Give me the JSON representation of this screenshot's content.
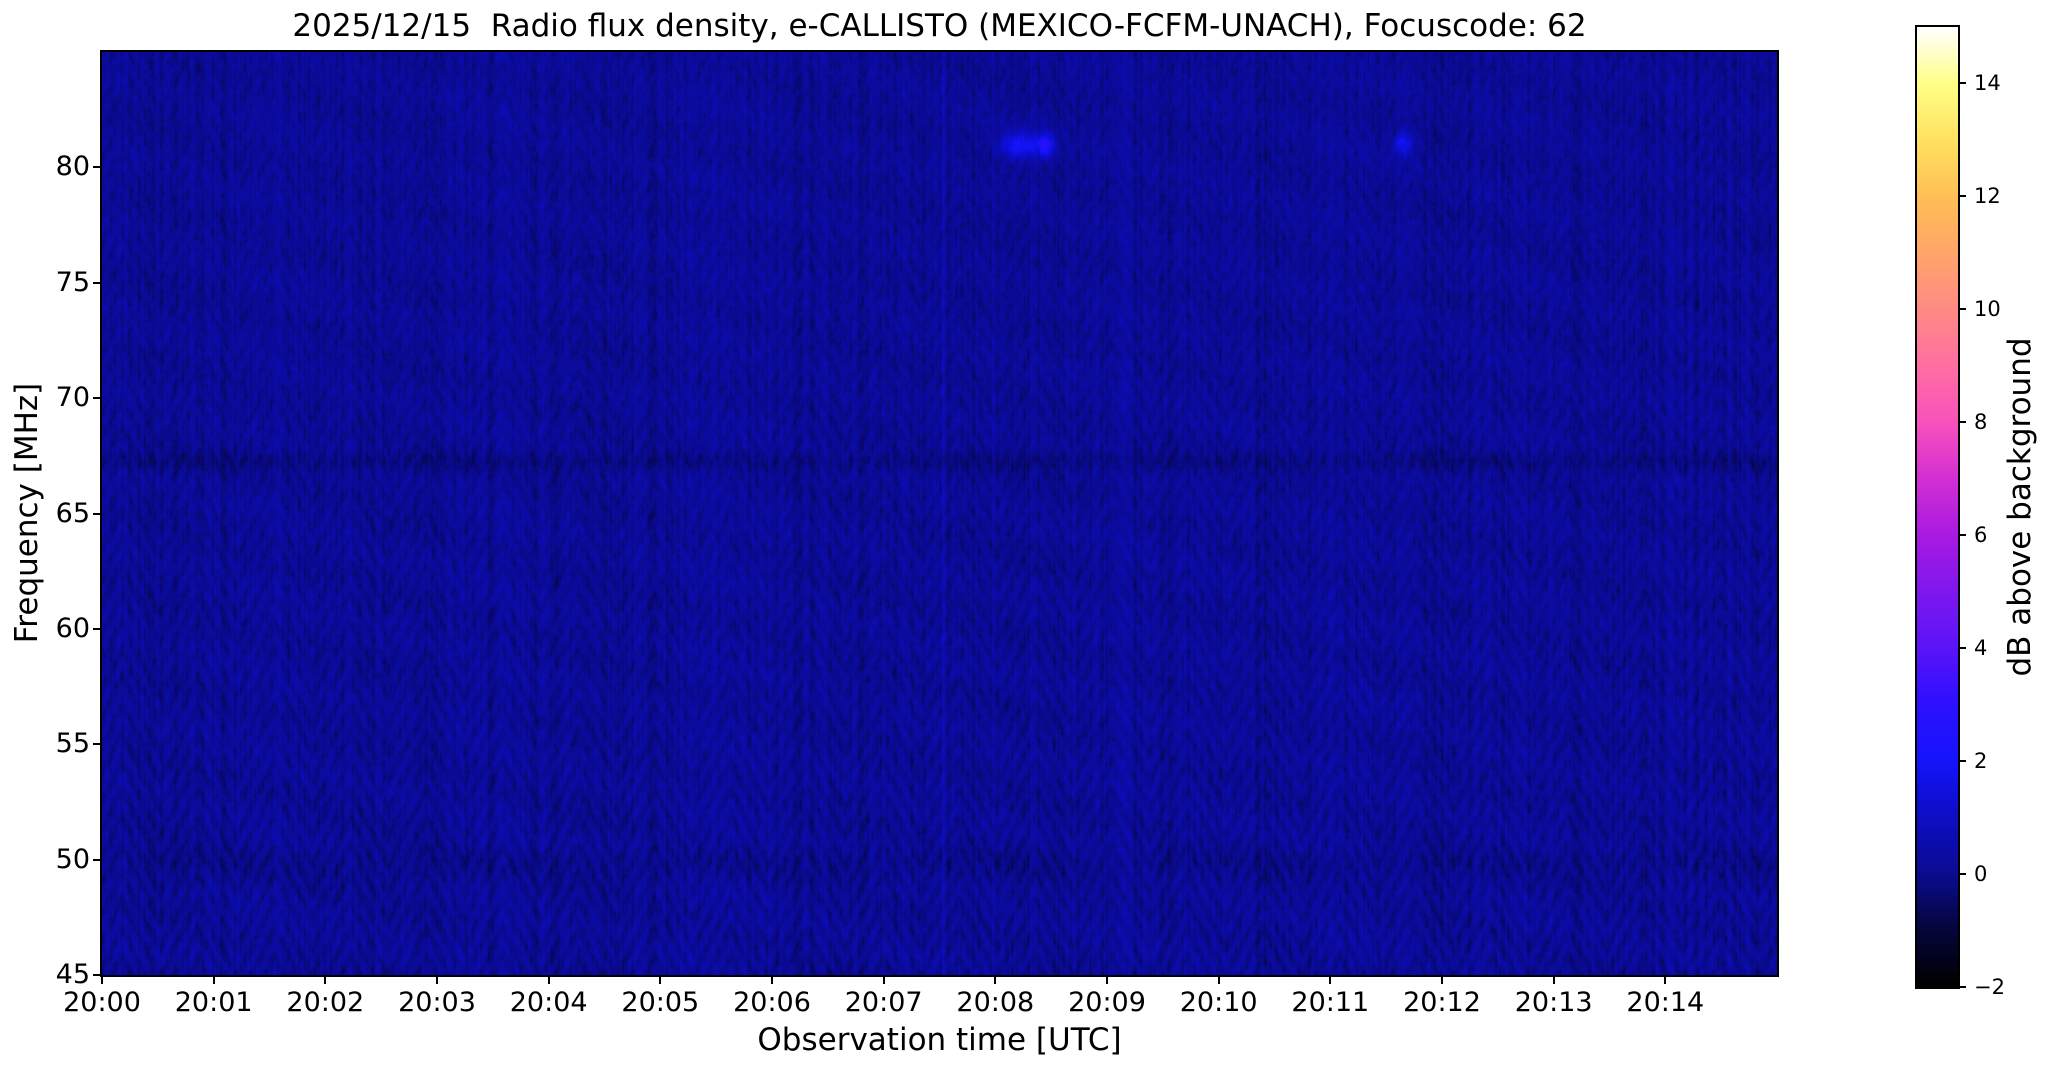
{
  "chart_data": {
    "type": "heatmap",
    "title": "2025/12/15  Radio flux density, e-CALLISTO (MEXICO-FCFM-UNACH), Focuscode: 62",
    "xlabel": "Observation time [UTC]",
    "ylabel": "Frequency [MHz]",
    "x_tick_labels": [
      "20:00",
      "20:01",
      "20:02",
      "20:03",
      "20:04",
      "20:05",
      "20:06",
      "20:07",
      "20:08",
      "20:09",
      "20:10",
      "20:11",
      "20:12",
      "20:13",
      "20:14"
    ],
    "x_range_minutes": [
      0,
      15
    ],
    "y_tick_labels": [
      "45",
      "50",
      "55",
      "60",
      "65",
      "70",
      "75",
      "80"
    ],
    "y_tick_values": [
      45,
      50,
      55,
      60,
      65,
      70,
      75,
      80
    ],
    "y_range_mhz": [
      45,
      85
    ],
    "grid": false,
    "colorbar": {
      "label": "dB above background",
      "tick_labels": [
        "−2",
        "0",
        "2",
        "4",
        "6",
        "8",
        "10",
        "12",
        "14"
      ],
      "tick_values": [
        -2,
        0,
        2,
        4,
        6,
        8,
        10,
        12,
        14
      ],
      "range_db": [
        -2,
        15
      ],
      "colormap": "gnuplot2",
      "stops": [
        {
          "t": 0.0,
          "c": "#000000"
        },
        {
          "t": 0.06,
          "c": "#05053a"
        },
        {
          "t": 0.118,
          "c": "#0b0b90"
        },
        {
          "t": 0.2,
          "c": "#0f0fd8"
        },
        {
          "t": 0.235,
          "c": "#1414fa"
        },
        {
          "t": 0.3,
          "c": "#3010ff"
        },
        {
          "t": 0.353,
          "c": "#5a14f8"
        },
        {
          "t": 0.42,
          "c": "#8517ec"
        },
        {
          "t": 0.47,
          "c": "#a81ae2"
        },
        {
          "t": 0.53,
          "c": "#d32fd2"
        },
        {
          "t": 0.588,
          "c": "#f951bc"
        },
        {
          "t": 0.65,
          "c": "#ff70a0"
        },
        {
          "t": 0.7,
          "c": "#ff8787"
        },
        {
          "t": 0.76,
          "c": "#ffa36b"
        },
        {
          "t": 0.82,
          "c": "#ffbd55"
        },
        {
          "t": 0.88,
          "c": "#ffe060"
        },
        {
          "t": 0.94,
          "c": "#ffff85"
        },
        {
          "t": 1.0,
          "c": "#ffffff"
        }
      ]
    },
    "background": {
      "description": "quiet solar radio background, mottled dark navy noise near 0 dB with faint chevron interference pattern",
      "base_db": 0.15,
      "noise_db_peak_to_peak": 1.0
    },
    "dark_bands_mhz": [
      {
        "freq_mhz": 67.3,
        "depth_db": 0.3,
        "sigma_mhz": 0.3
      },
      {
        "freq_mhz": 49.8,
        "depth_db": 0.18,
        "sigma_mhz": 0.45
      }
    ],
    "bright_vlines_min": [
      {
        "time_min": 7.53,
        "amp_db": 0.45
      }
    ],
    "features": [
      {
        "time_utc": "20:08:12",
        "time_min": 8.2,
        "freq_mhz": 81.0,
        "amp_db": 2.2,
        "sigma_min": 0.11,
        "sigma_mhz": 0.4
      },
      {
        "time_utc": "20:08:26",
        "time_min": 8.44,
        "freq_mhz": 81.0,
        "amp_db": 2.5,
        "sigma_min": 0.055,
        "sigma_mhz": 0.35
      },
      {
        "time_utc": "20:11:38",
        "time_min": 11.64,
        "freq_mhz": 81.1,
        "amp_db": 1.7,
        "sigma_min": 0.06,
        "sigma_mhz": 0.35
      }
    ]
  }
}
